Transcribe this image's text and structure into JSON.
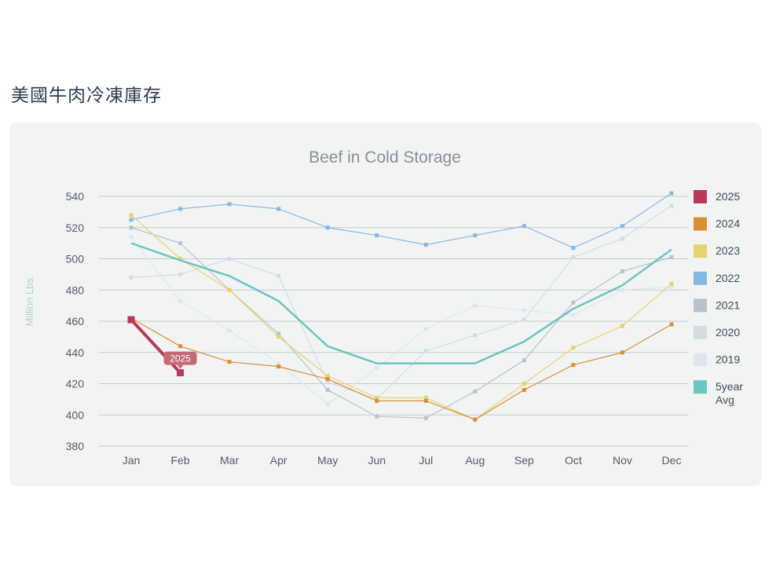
{
  "page": {
    "title": "美國牛肉冷凍庫存"
  },
  "chart_data": {
    "type": "line",
    "title": "Beef in Cold Storage",
    "ylabel": "Million Lbs.",
    "xlabel": "",
    "ylim": [
      380,
      540
    ],
    "yticks": [
      380,
      400,
      420,
      440,
      460,
      480,
      500,
      520,
      540
    ],
    "categories": [
      "Jan",
      "Feb",
      "Mar",
      "Apr",
      "May",
      "Jun",
      "Jul",
      "Aug",
      "Sep",
      "Oct",
      "Nov",
      "Dec"
    ],
    "grid": true,
    "legend_position": "right",
    "tooltip": {
      "series": "2025",
      "category": "Feb",
      "label": "2025"
    },
    "series": [
      {
        "name": "2019",
        "color": "#dfe6eb",
        "values": [
          514,
          473,
          454,
          433,
          407,
          430,
          455,
          470,
          467,
          464,
          480,
          482
        ]
      },
      {
        "name": "2020",
        "color": "#d2dce2",
        "values": [
          488,
          490,
          500,
          489,
          421,
          410,
          441,
          451,
          461,
          501,
          513,
          534
        ]
      },
      {
        "name": "2021",
        "color": "#b9c1cb",
        "values": [
          520,
          510,
          480,
          452,
          416,
          399,
          398,
          415,
          435,
          472,
          492,
          501
        ]
      },
      {
        "name": "2022",
        "color": "#84b8e3",
        "values": [
          525,
          532,
          535,
          532,
          520,
          515,
          509,
          515,
          521,
          507,
          521,
          542
        ]
      },
      {
        "name": "2023",
        "color": "#e6d26c",
        "values": [
          528,
          500,
          480,
          450,
          425,
          411,
          411,
          397,
          420,
          443,
          457,
          484
        ]
      },
      {
        "name": "2024",
        "color": "#d98e34",
        "values": [
          462,
          444,
          434,
          431,
          423,
          409,
          409,
          397,
          416,
          432,
          440,
          458
        ]
      },
      {
        "name": "5year Avg",
        "color": "#6cc5be",
        "values": [
          510,
          499,
          489,
          473,
          444,
          433,
          433,
          433,
          447,
          468,
          483,
          506
        ]
      },
      {
        "name": "2025",
        "color": "#b83a57",
        "values": [
          461,
          427,
          null,
          null,
          null,
          null,
          null,
          null,
          null,
          null,
          null,
          null
        ]
      }
    ]
  }
}
